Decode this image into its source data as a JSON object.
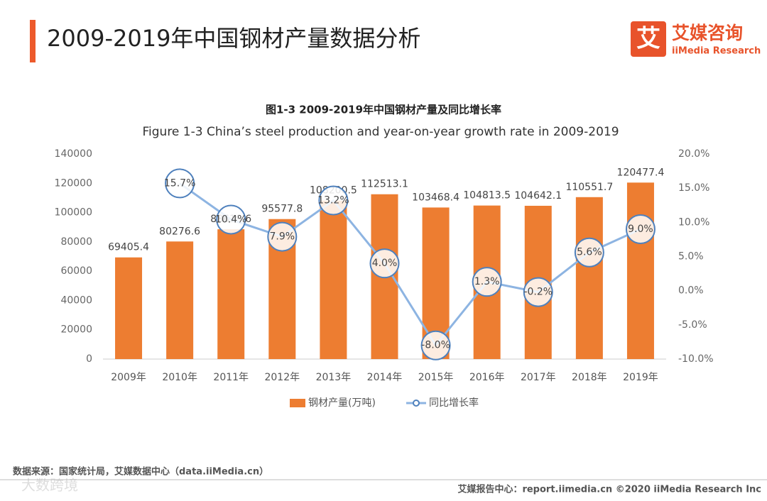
{
  "header": {
    "title": "2009-2019年中国钢材产量数据分析",
    "logo_mark": "艾",
    "logo_name": "艾媒咨询",
    "logo_sub": "iiMedia Research"
  },
  "chart_data": {
    "type": "bar_line",
    "title": "图1-3 2009-2019年中国钢材产量及同比增长率",
    "subtitle": "Figure 1-3 China’s steel production and year-on-year growth rate  in 2009-2019",
    "categories": [
      "2009年",
      "2010年",
      "2011年",
      "2012年",
      "2013年",
      "2014年",
      "2015年",
      "2016年",
      "2017年",
      "2018年",
      "2019年"
    ],
    "series": [
      {
        "name": "钢材产量(万吨)",
        "type": "bar",
        "color": "#ed7d31",
        "values": [
          69405.4,
          80276.6,
          88619.6,
          95577.8,
          108200.5,
          112513.1,
          103468.4,
          104813.5,
          104642.1,
          110551.7,
          120477.4
        ]
      },
      {
        "name": "同比增长率",
        "type": "line",
        "axis": "y2",
        "color": "#8db4e2",
        "values": [
          null,
          15.7,
          10.4,
          7.9,
          13.2,
          4.0,
          -8.0,
          1.3,
          -0.2,
          5.6,
          9.0
        ],
        "value_labels": [
          null,
          "15.7%",
          "10.4%",
          "7.9%",
          "13.2%",
          "4.0%",
          "-8.0%",
          "1.3%",
          "-0.2%",
          "5.6%",
          "9.0%"
        ]
      }
    ],
    "ylim": [
      0,
      140000
    ],
    "yticks": [
      0,
      20000,
      40000,
      60000,
      80000,
      100000,
      120000,
      140000
    ],
    "y2lim": [
      -10,
      20
    ],
    "y2ticks": [
      {
        "value": -10,
        "label": "-10.0%"
      },
      {
        "value": -5,
        "label": "-5.0%"
      },
      {
        "value": 0,
        "label": "0.0%"
      },
      {
        "value": 5,
        "label": "5.0%"
      },
      {
        "value": 10,
        "label": "10.0%"
      },
      {
        "value": 15,
        "label": "15.0%"
      },
      {
        "value": 20,
        "label": "20.0%"
      }
    ],
    "legend": "bottom",
    "grid": false
  },
  "footer": {
    "source": "数据来源：国家统计局，艾媒数据中心（data.iiMedia.cn）",
    "report": "艾媒报告中心：report.iimedia.cn  ©2020  iiMedia Research  Inc",
    "watermark": "大数跨境"
  }
}
